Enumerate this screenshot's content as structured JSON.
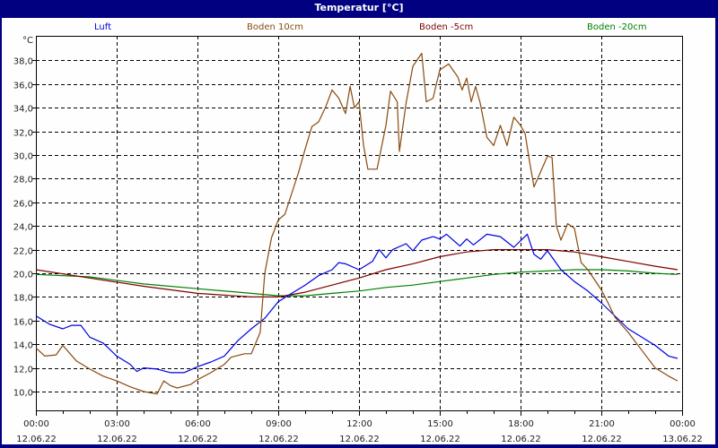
{
  "window": {
    "title": "Temperatur [°C]"
  },
  "chart_data": {
    "type": "line",
    "title": "Temperatur [°C]",
    "xlabel": "",
    "ylabel": "°C",
    "ylim": [
      8.3,
      39.9
    ],
    "grid": true,
    "legend_position": "top",
    "y_ticks": [
      "10,0",
      "12,0",
      "14,0",
      "16,0",
      "18,0",
      "20,0",
      "22,0",
      "24,0",
      "26,0",
      "28,0",
      "30,0",
      "32,0",
      "34,0",
      "36,0",
      "38,0"
    ],
    "x_ticks": [
      {
        "time": "00:00",
        "date": "12.06.22"
      },
      {
        "time": "03:00",
        "date": "12.06.22"
      },
      {
        "time": "06:00",
        "date": "12.06.22"
      },
      {
        "time": "09:00",
        "date": "12.06.22"
      },
      {
        "time": "12:00",
        "date": "12.06.22"
      },
      {
        "time": "15:00",
        "date": "12.06.22"
      },
      {
        "time": "18:00",
        "date": "12.06.22"
      },
      {
        "time": "21:00",
        "date": "12.06.22"
      },
      {
        "time": "00:00",
        "date": "13.06.22"
      }
    ],
    "x_unit": "hours since 12.06.22 00:00",
    "series": [
      {
        "name": "Luft",
        "color": "#0000e0",
        "x": [
          0,
          0.5,
          1,
          1.33,
          1.67,
          2,
          2.5,
          3,
          3.5,
          3.75,
          4,
          4.5,
          5,
          5.5,
          6,
          6.5,
          7,
          7.5,
          8,
          8.5,
          9,
          9.5,
          10,
          10.5,
          11,
          11.25,
          11.5,
          12,
          12.5,
          12.75,
          13,
          13.25,
          13.75,
          14,
          14.33,
          14.75,
          15,
          15.25,
          15.75,
          16,
          16.25,
          16.75,
          17.25,
          17.75,
          18.25,
          18.5,
          18.75,
          19,
          19.5,
          20,
          20.5,
          21,
          21.5,
          22,
          22.5,
          23,
          23.5,
          23.83
        ],
        "values": [
          16.4,
          15.7,
          15.3,
          15.6,
          15.6,
          14.6,
          14.1,
          13.0,
          12.3,
          11.7,
          12.0,
          11.9,
          11.6,
          11.6,
          12.1,
          12.5,
          13.0,
          14.3,
          15.3,
          16.2,
          17.6,
          18.3,
          19.0,
          19.8,
          20.3,
          20.9,
          20.8,
          20.3,
          21.0,
          22.0,
          21.3,
          22.0,
          22.5,
          21.9,
          22.8,
          23.1,
          22.9,
          23.3,
          22.3,
          22.9,
          22.4,
          23.3,
          23.1,
          22.2,
          23.3,
          21.6,
          21.2,
          21.9,
          20.3,
          19.3,
          18.5,
          17.5,
          16.4,
          15.3,
          14.6,
          13.9,
          13.0,
          12.8
        ]
      },
      {
        "name": "Boden 10cm",
        "color": "#8b4a10",
        "x": [
          0,
          0.33,
          0.75,
          1,
          1.5,
          2,
          2.5,
          3,
          3.5,
          4,
          4.5,
          4.75,
          5,
          5.25,
          5.75,
          6,
          6.5,
          7,
          7.25,
          7.75,
          8,
          8.33,
          8.5,
          8.75,
          9,
          9.25,
          9.75,
          10,
          10.25,
          10.5,
          10.75,
          11,
          11.25,
          11.5,
          11.67,
          11.83,
          12,
          12.17,
          12.33,
          12.67,
          13,
          13.17,
          13.42,
          13.5,
          13.75,
          14,
          14.33,
          14.5,
          14.75,
          15,
          15.33,
          15.67,
          15.83,
          16,
          16.17,
          16.33,
          16.5,
          16.75,
          17,
          17.25,
          17.5,
          17.75,
          18,
          18.17,
          18.33,
          18.5,
          19,
          19.17,
          19.33,
          19.5,
          19.75,
          20,
          20.25,
          20.5,
          21,
          21.25,
          21.5,
          22,
          22.5,
          23,
          23.5,
          23.83
        ],
        "values": [
          13.7,
          13.0,
          13.1,
          13.9,
          12.6,
          11.9,
          11.3,
          10.9,
          10.4,
          10.0,
          9.8,
          10.9,
          10.5,
          10.3,
          10.6,
          11.0,
          11.6,
          12.3,
          12.9,
          13.2,
          13.2,
          15.0,
          20.0,
          23.0,
          24.5,
          25.0,
          28.5,
          30.5,
          32.4,
          32.8,
          34.0,
          35.5,
          34.8,
          33.5,
          35.8,
          34.0,
          34.5,
          30.8,
          28.8,
          28.8,
          32.5,
          35.4,
          34.5,
          30.3,
          34.4,
          37.5,
          38.6,
          34.5,
          34.8,
          37.2,
          37.7,
          36.6,
          35.5,
          36.5,
          34.5,
          35.8,
          34.4,
          31.5,
          30.8,
          32.5,
          30.8,
          33.2,
          32.5,
          31.8,
          29.5,
          27.3,
          29.9,
          29.8,
          24.0,
          22.8,
          24.2,
          23.8,
          20.9,
          20.3,
          18.6,
          17.5,
          16.3,
          15.0,
          13.5,
          12.0,
          11.3,
          10.9
        ]
      },
      {
        "name": "Boden -5cm",
        "color": "#800000",
        "x": [
          0,
          2,
          4,
          6,
          8,
          9,
          10,
          11,
          12,
          13,
          14,
          15,
          16,
          17,
          18,
          19,
          20,
          21,
          22,
          23,
          23.83
        ],
        "values": [
          20.3,
          19.6,
          18.9,
          18.3,
          18.0,
          18.0,
          18.4,
          19.0,
          19.6,
          20.3,
          20.8,
          21.4,
          21.8,
          22.0,
          22.0,
          22.0,
          21.8,
          21.4,
          21.0,
          20.6,
          20.3
        ]
      },
      {
        "name": "Boden -20cm",
        "color": "#008000",
        "x": [
          0,
          2,
          4,
          6,
          8,
          9,
          10,
          11,
          12,
          13,
          14,
          15,
          16,
          17,
          18,
          19,
          20,
          21,
          22,
          23,
          23.83
        ],
        "values": [
          19.9,
          19.7,
          19.1,
          18.7,
          18.3,
          18.1,
          18.1,
          18.3,
          18.5,
          18.8,
          19.0,
          19.3,
          19.6,
          19.9,
          20.1,
          20.2,
          20.3,
          20.3,
          20.2,
          20.0,
          19.9
        ]
      }
    ]
  }
}
